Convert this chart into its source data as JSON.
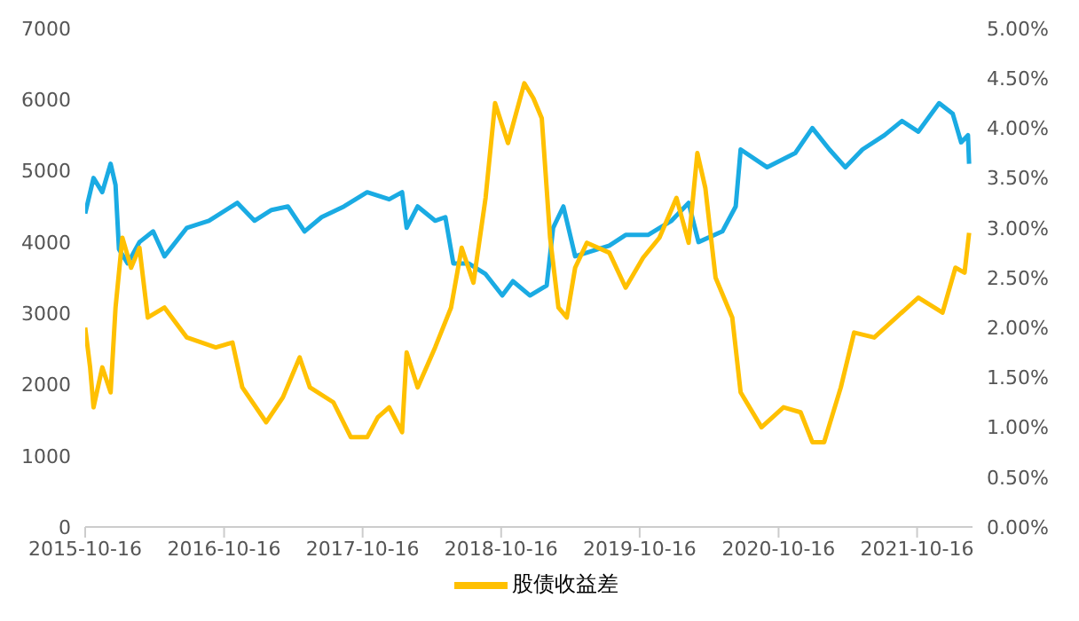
{
  "chart_data": {
    "type": "line",
    "legend": "bottom",
    "grid": false,
    "marker": "none",
    "line_style": "solid",
    "xlim": [
      "2015-10-16",
      "2022-03-11"
    ],
    "xticks": [
      "2015-10-16",
      "2016-10-16",
      "2017-10-16",
      "2018-10-16",
      "2019-10-16",
      "2020-10-16",
      "2021-10-16"
    ],
    "ylim": [
      0,
      7000
    ],
    "yticks": [
      0,
      1000,
      2000,
      3000,
      4000,
      5000,
      6000,
      7000
    ],
    "y2lim": [
      0,
      5
    ],
    "y2ticks": [
      {
        "value": 0,
        "label": "0.00%"
      },
      {
        "value": 0.5,
        "label": "0.50%"
      },
      {
        "value": 1,
        "label": "1.00%"
      },
      {
        "value": 1.5,
        "label": "1.50%"
      },
      {
        "value": 2,
        "label": "2.00%"
      },
      {
        "value": 2.5,
        "label": "2.50%"
      },
      {
        "value": 3,
        "label": "3.00%"
      },
      {
        "value": 3.5,
        "label": "3.50%"
      },
      {
        "value": 4,
        "label": "4.00%"
      },
      {
        "value": 4.5,
        "label": "4.50%"
      },
      {
        "value": 5,
        "label": "5.00%"
      }
    ],
    "series": [
      {
        "color": "#1aabe3",
        "x": [
          "2015-10-16",
          "2015-11-07",
          "2015-11-30",
          "2015-12-22",
          "2016-01-04",
          "2016-01-13",
          "2016-02-05",
          "2016-03-07",
          "2016-04-12",
          "2016-05-12",
          "2016-07-10",
          "2016-09-06",
          "2016-11-20",
          "2017-01-04",
          "2017-02-18",
          "2017-04-02",
          "2017-05-16",
          "2017-06-30",
          "2017-08-28",
          "2017-10-28",
          "2017-12-25",
          "2018-01-28",
          "2018-02-09",
          "2018-03-10",
          "2018-04-25",
          "2018-05-22",
          "2018-06-12",
          "2018-07-22",
          "2018-09-05",
          "2018-10-19",
          "2018-11-16",
          "2018-12-31",
          "2019-01-31",
          "2019-02-13",
          "2019-03-02",
          "2019-03-29",
          "2019-04-29",
          "2019-07-28",
          "2019-09-09",
          "2019-11-07",
          "2020-01-08",
          "2020-02-22",
          "2020-03-19",
          "2020-05-21",
          "2020-06-25",
          "2020-07-08",
          "2020-09-16",
          "2020-11-29",
          "2021-01-13",
          "2021-02-27",
          "2021-04-10",
          "2021-05-25",
          "2021-07-22",
          "2021-09-06",
          "2021-10-19",
          "2021-12-13",
          "2022-01-18",
          "2022-02-09",
          "2022-02-27",
          "2022-03-02"
        ],
        "values": [
          4400,
          4900,
          4700,
          5100,
          4800,
          3900,
          3700,
          4000,
          4150,
          3800,
          4200,
          4300,
          4550,
          4300,
          4450,
          4500,
          4150,
          4350,
          4500,
          4700,
          4600,
          4700,
          4200,
          4500,
          4300,
          4350,
          3700,
          3700,
          3550,
          3250,
          3450,
          3250,
          3350,
          3390,
          4200,
          4500,
          3800,
          3950,
          4100,
          4100,
          4300,
          4550,
          4000,
          4150,
          4500,
          5300,
          5050,
          5250,
          5600,
          5300,
          5050,
          5300,
          5500,
          5700,
          5550,
          5950,
          5800,
          5400,
          5500,
          5100
        ]
      },
      {
        "name": "股债收益差",
        "color": "#ffc000",
        "axis": "y2",
        "x": [
          "2015-10-16",
          "2015-10-29",
          "2015-11-07",
          "2015-11-30",
          "2015-12-22",
          "2016-01-04",
          "2016-01-22",
          "2016-02-14",
          "2016-03-07",
          "2016-03-29",
          "2016-05-12",
          "2016-07-10",
          "2016-09-24",
          "2016-11-07",
          "2016-12-03",
          "2017-02-04",
          "2017-03-20",
          "2017-05-03",
          "2017-05-30",
          "2017-07-31",
          "2017-09-15",
          "2017-10-28",
          "2017-11-25",
          "2017-12-25",
          "2018-01-28",
          "2018-02-09",
          "2018-03-10",
          "2018-04-25",
          "2018-06-06",
          "2018-07-04",
          "2018-08-04",
          "2018-09-05",
          "2018-09-30",
          "2018-11-03",
          "2018-12-16",
          "2019-01-09",
          "2019-01-31",
          "2019-02-22",
          "2019-03-16",
          "2019-04-07",
          "2019-04-29",
          "2019-05-30",
          "2019-07-28",
          "2019-09-09",
          "2019-10-25",
          "2019-12-07",
          "2020-01-21",
          "2020-02-22",
          "2020-03-16",
          "2020-04-06",
          "2020-05-03",
          "2020-06-16",
          "2020-07-08",
          "2020-09-01",
          "2020-10-29",
          "2020-12-13",
          "2021-01-13",
          "2021-02-13",
          "2021-03-29",
          "2021-05-03",
          "2021-06-25",
          "2021-08-22",
          "2021-10-19",
          "2021-12-22",
          "2022-01-25",
          "2022-02-18",
          "2022-03-02"
        ],
        "values": [
          2.0,
          1.6,
          1.2,
          1.6,
          1.35,
          2.2,
          2.9,
          2.6,
          2.8,
          2.1,
          2.2,
          1.9,
          1.8,
          1.85,
          1.4,
          1.05,
          1.3,
          1.7,
          1.4,
          1.25,
          0.9,
          0.9,
          1.1,
          1.2,
          0.95,
          1.75,
          1.4,
          1.8,
          2.2,
          2.8,
          2.45,
          3.3,
          4.25,
          3.85,
          4.45,
          4.3,
          4.1,
          2.9,
          2.2,
          2.1,
          2.6,
          2.85,
          2.75,
          2.4,
          2.7,
          2.9,
          3.3,
          2.85,
          3.75,
          3.4,
          2.5,
          2.1,
          1.35,
          1.0,
          1.2,
          1.15,
          0.85,
          0.85,
          1.4,
          1.95,
          1.9,
          2.1,
          2.3,
          2.15,
          2.6,
          2.55,
          2.95
        ]
      }
    ]
  }
}
